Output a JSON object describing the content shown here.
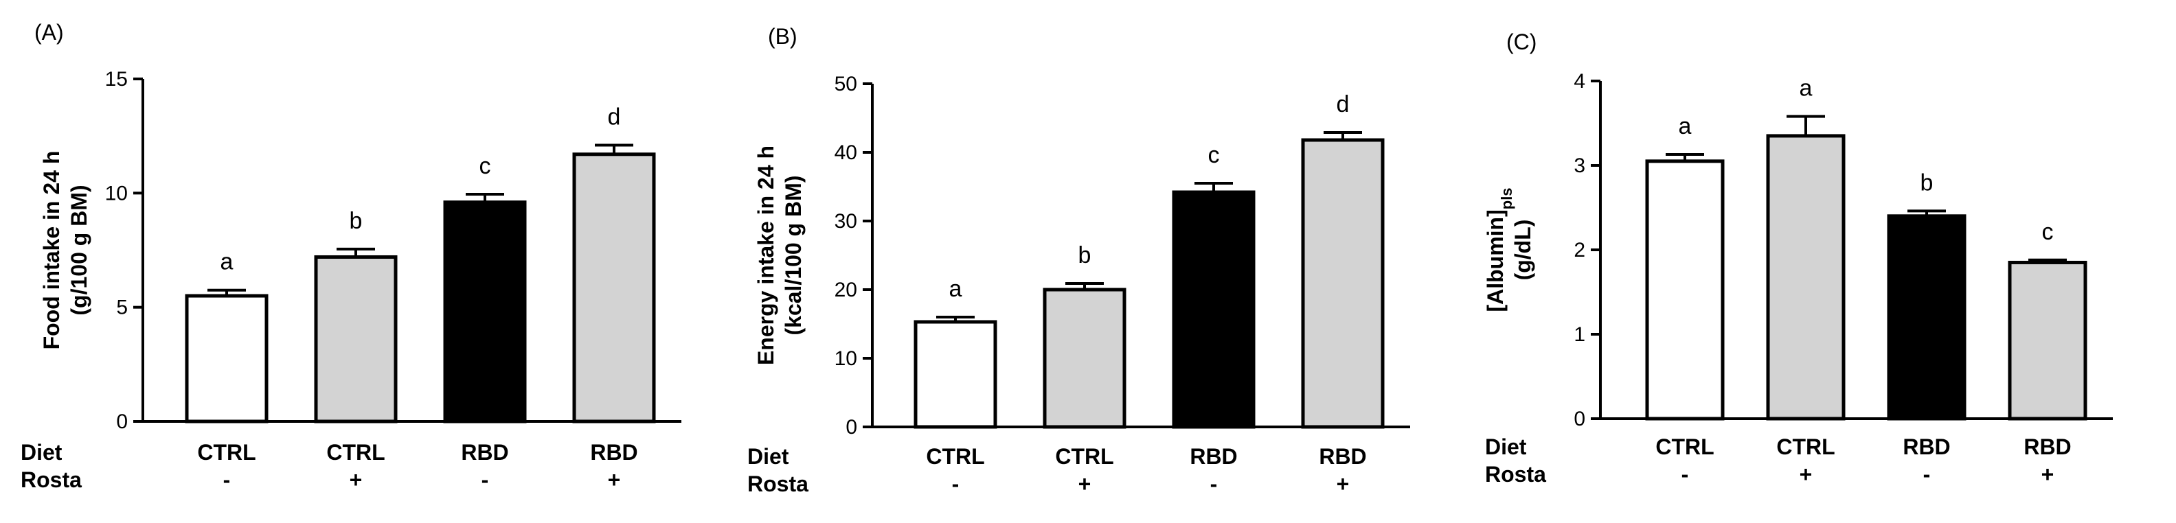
{
  "colors": {
    "white": "#ffffff",
    "gray": "#d3d3d3",
    "black": "#000000"
  },
  "row_labels": {
    "diet": "Diet",
    "rosta": "Rosta"
  },
  "chart_data": [
    {
      "type": "bar",
      "panel_label": "(A)",
      "ylabel_line1": "Food intake in 24 h",
      "ylabel_line2": "(g/100 g BM)",
      "ylim": [
        0,
        15
      ],
      "yticks": [
        "0",
        "5",
        "10",
        "15"
      ],
      "categories": [
        "CTRL",
        "CTRL",
        "RBD",
        "RBD"
      ],
      "rosta": [
        "-",
        "+",
        "-",
        "+"
      ],
      "values": [
        5.5,
        7.2,
        9.6,
        11.7
      ],
      "errors": [
        0.25,
        0.35,
        0.35,
        0.4
      ],
      "letters": [
        "a",
        "b",
        "c",
        "d"
      ],
      "fills": [
        "white",
        "gray",
        "black",
        "gray"
      ],
      "grid": false
    },
    {
      "type": "bar",
      "panel_label": "(B)",
      "ylabel_line1": "Energy intake in 24 h",
      "ylabel_line2": "(kcal/100 g BM)",
      "ylim": [
        0,
        50
      ],
      "yticks": [
        "0",
        "10",
        "20",
        "30",
        "40",
        "50"
      ],
      "categories": [
        "CTRL",
        "CTRL",
        "RBD",
        "RBD"
      ],
      "rosta": [
        "-",
        "+",
        "-",
        "+"
      ],
      "values": [
        15.3,
        20.0,
        34.2,
        41.8
      ],
      "errors": [
        0.7,
        0.9,
        1.3,
        1.1
      ],
      "letters": [
        "a",
        "b",
        "c",
        "d"
      ],
      "fills": [
        "white",
        "gray",
        "black",
        "gray"
      ],
      "grid": false
    },
    {
      "type": "bar",
      "panel_label": "(C)",
      "ylabel_line1": "[Albumin]",
      "ylabel_sub": "pls",
      "ylabel_line2": "(g/dL)",
      "ylim": [
        0,
        4
      ],
      "yticks": [
        "0",
        "1",
        "2",
        "3",
        "4"
      ],
      "categories": [
        "CTRL",
        "CTRL",
        "RBD",
        "RBD"
      ],
      "rosta": [
        "-",
        "+",
        "-",
        "+"
      ],
      "values": [
        3.05,
        3.35,
        2.4,
        1.85
      ],
      "errors": [
        0.08,
        0.23,
        0.06,
        0.03
      ],
      "letters": [
        "a",
        "a",
        "b",
        "c"
      ],
      "fills": [
        "white",
        "gray",
        "black",
        "gray"
      ],
      "grid": false
    }
  ]
}
